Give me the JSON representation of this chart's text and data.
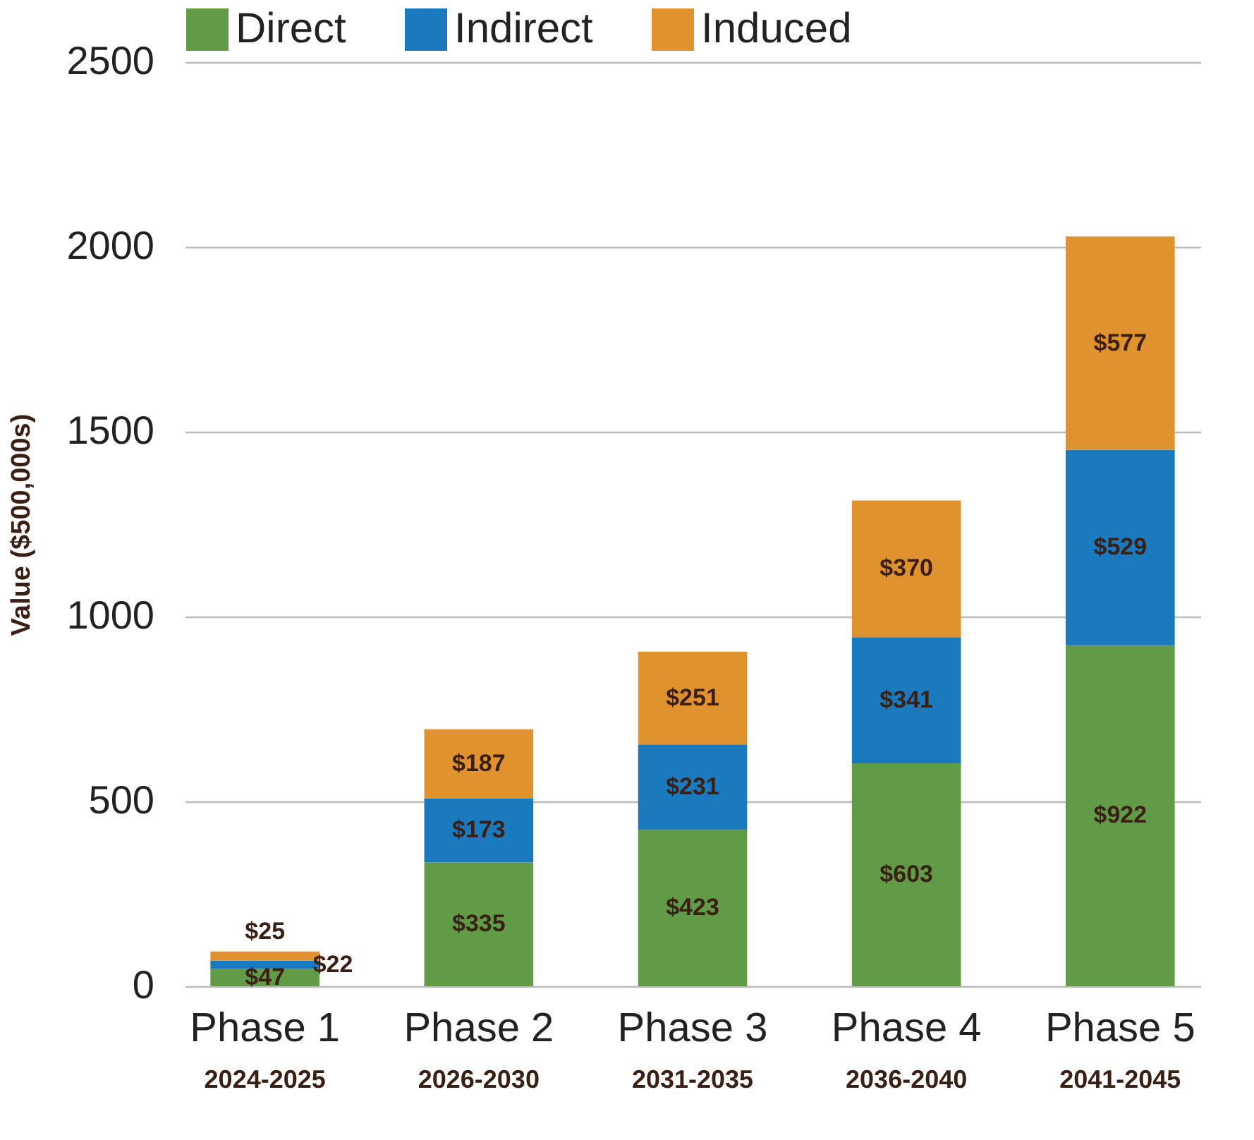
{
  "chart_data": {
    "type": "bar",
    "stacked": true,
    "categories": [
      "Phase 1\n2024-2025",
      "Phase 2\n2026-2030",
      "Phase 3\n2031-2035",
      "Phase 4\n2036-2040",
      "Phase 5\n2041-2045"
    ],
    "series": [
      {
        "name": "Direct",
        "color": "#629b47",
        "values": [
          47,
          335,
          423,
          603,
          922
        ],
        "value_labels": [
          "$47",
          "$335",
          "$423",
          "$603",
          "$922"
        ]
      },
      {
        "name": "Indirect",
        "color": "#1b79be",
        "values": [
          22,
          173,
          231,
          341,
          529
        ],
        "value_labels": [
          "$22",
          "$173",
          "$231",
          "$341",
          "$529"
        ]
      },
      {
        "name": "Induced",
        "color": "#e0922f",
        "values": [
          25,
          187,
          251,
          370,
          577
        ],
        "value_labels": [
          "$25",
          "$187",
          "$251",
          "$370",
          "$577"
        ]
      }
    ],
    "ylabel": "Value ($500,000s)",
    "ylim": [
      0,
      2500
    ],
    "yticks": [
      0,
      500,
      1000,
      1500,
      2000,
      2500
    ],
    "grid": "y",
    "legend": "top"
  }
}
